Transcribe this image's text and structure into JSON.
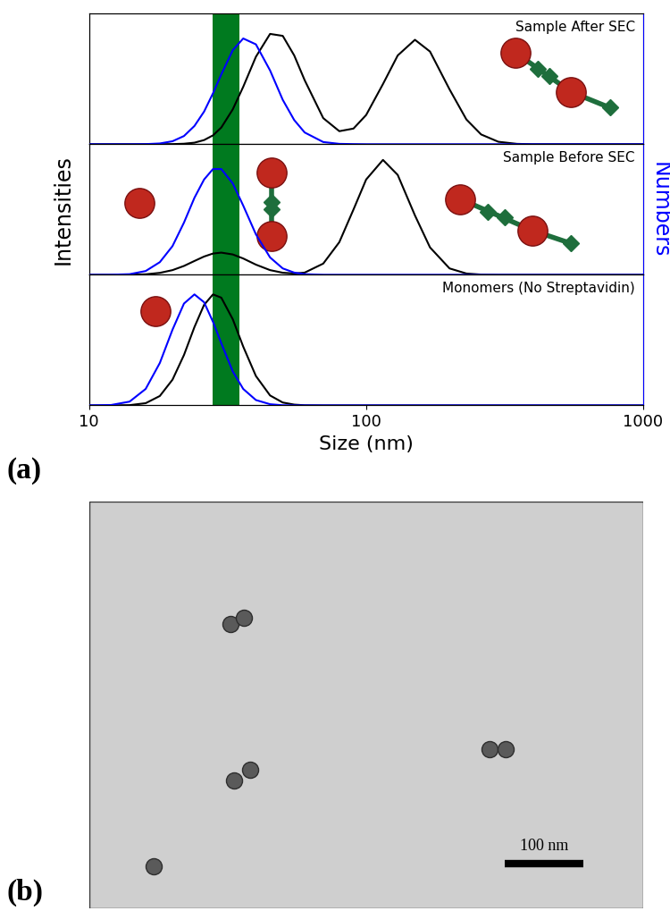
{
  "chart_data": [
    {
      "type": "line",
      "title": "Sample After SEC",
      "x": [
        10,
        12,
        14,
        16,
        18,
        20,
        22,
        24,
        26,
        28,
        30,
        33,
        36,
        40,
        45,
        50,
        55,
        60,
        70,
        80,
        90,
        100,
        115,
        130,
        150,
        170,
        200,
        230,
        260,
        300,
        350,
        400,
        500,
        700,
        1000
      ],
      "series": [
        {
          "color": "#000000",
          "values": [
            0,
            0,
            0,
            0,
            0,
            0.001,
            0.004,
            0.012,
            0.032,
            0.068,
            0.128,
            0.267,
            0.44,
            0.67,
            0.845,
            0.83,
            0.68,
            0.49,
            0.2,
            0.1,
            0.12,
            0.224,
            0.461,
            0.68,
            0.8,
            0.71,
            0.42,
            0.19,
            0.075,
            0.019,
            0.003,
            0,
            0,
            0,
            0
          ]
        },
        {
          "color": "#0000ff",
          "axis": "y2",
          "values": [
            0,
            0,
            0,
            0.001,
            0.006,
            0.023,
            0.063,
            0.14,
            0.25,
            0.39,
            0.535,
            0.72,
            0.81,
            0.765,
            0.565,
            0.34,
            0.185,
            0.09,
            0.017,
            0.003,
            0.001,
            0,
            0,
            0,
            0,
            0,
            0,
            0,
            0,
            0,
            0,
            0,
            0,
            0,
            0
          ]
        }
      ],
      "xlim": [
        10,
        1000
      ],
      "ylim": [
        0,
        1
      ],
      "y2lim": [
        0,
        1
      ],
      "log": "x",
      "tick_labels": false,
      "band": [
        28,
        35
      ]
    },
    {
      "type": "line",
      "title": "Sample Before SEC",
      "ylabel": "Intensities",
      "y2label": "Numbers",
      "x": [
        10,
        12,
        14,
        16,
        18,
        20,
        22,
        24,
        26,
        28,
        30,
        33,
        36,
        40,
        45,
        50,
        55,
        60,
        70,
        80,
        90,
        100,
        115,
        130,
        150,
        170,
        200,
        230,
        260,
        300,
        350,
        400,
        500,
        700,
        1000
      ],
      "series": [
        {
          "color": "#000000",
          "values": [
            0,
            0,
            0.001,
            0.004,
            0.015,
            0.036,
            0.068,
            0.106,
            0.14,
            0.163,
            0.17,
            0.156,
            0.125,
            0.078,
            0.036,
            0.016,
            0.01,
            0.017,
            0.086,
            0.25,
            0.5,
            0.73,
            0.88,
            0.765,
            0.455,
            0.21,
            0.049,
            0.01,
            0.002,
            0,
            0,
            0,
            0,
            0,
            0
          ]
        },
        {
          "color": "#0000ff",
          "axis": "y2",
          "values": [
            0,
            0.001,
            0.005,
            0.029,
            0.097,
            0.22,
            0.4,
            0.59,
            0.73,
            0.81,
            0.81,
            0.7,
            0.53,
            0.31,
            0.133,
            0.049,
            0.017,
            0.005,
            0,
            0,
            0,
            0,
            0,
            0,
            0,
            0,
            0,
            0,
            0,
            0,
            0,
            0,
            0,
            0,
            0
          ]
        }
      ],
      "xlim": [
        10,
        1000
      ],
      "ylim": [
        0,
        1
      ],
      "y2lim": [
        0,
        1
      ],
      "log": "x",
      "tick_labels": false,
      "band": [
        28,
        35
      ]
    },
    {
      "type": "line",
      "title": "Monomers (No Streptavidin)",
      "xlabel": "Size (nm)",
      "x": [
        10,
        12,
        14,
        16,
        18,
        20,
        22,
        24,
        26,
        28,
        30,
        33,
        36,
        40,
        45,
        50,
        55,
        60,
        70,
        80,
        90,
        100,
        115,
        130,
        150,
        170,
        200,
        230,
        260,
        300,
        350,
        400,
        500,
        700,
        1000
      ],
      "series": [
        {
          "color": "#000000",
          "values": [
            0,
            0,
            0.002,
            0.017,
            0.072,
            0.197,
            0.386,
            0.6,
            0.77,
            0.85,
            0.825,
            0.66,
            0.45,
            0.225,
            0.076,
            0.022,
            0.006,
            0.001,
            0,
            0,
            0,
            0,
            0,
            0,
            0,
            0,
            0,
            0,
            0,
            0,
            0,
            0,
            0,
            0,
            0
          ]
        },
        {
          "color": "#0000ff",
          "axis": "y2",
          "values": [
            0,
            0.003,
            0.029,
            0.126,
            0.325,
            0.58,
            0.78,
            0.85,
            0.79,
            0.64,
            0.476,
            0.26,
            0.126,
            0.041,
            0.009,
            0.001,
            0,
            0,
            0,
            0,
            0,
            0,
            0,
            0,
            0,
            0,
            0,
            0,
            0,
            0,
            0,
            0,
            0,
            0,
            0
          ]
        }
      ],
      "xlim": [
        10,
        1000
      ],
      "ylim": [
        0,
        1
      ],
      "y2lim": [
        0,
        1
      ],
      "log": "x",
      "xticks": [
        10,
        100,
        1000
      ],
      "tick_labels": "x",
      "band": [
        28,
        35
      ]
    }
  ],
  "panel_labels": [
    "(a)",
    "(b)"
  ],
  "tem": {
    "scale_bar_label": "100 nm",
    "scale_bar_length": 100
  }
}
